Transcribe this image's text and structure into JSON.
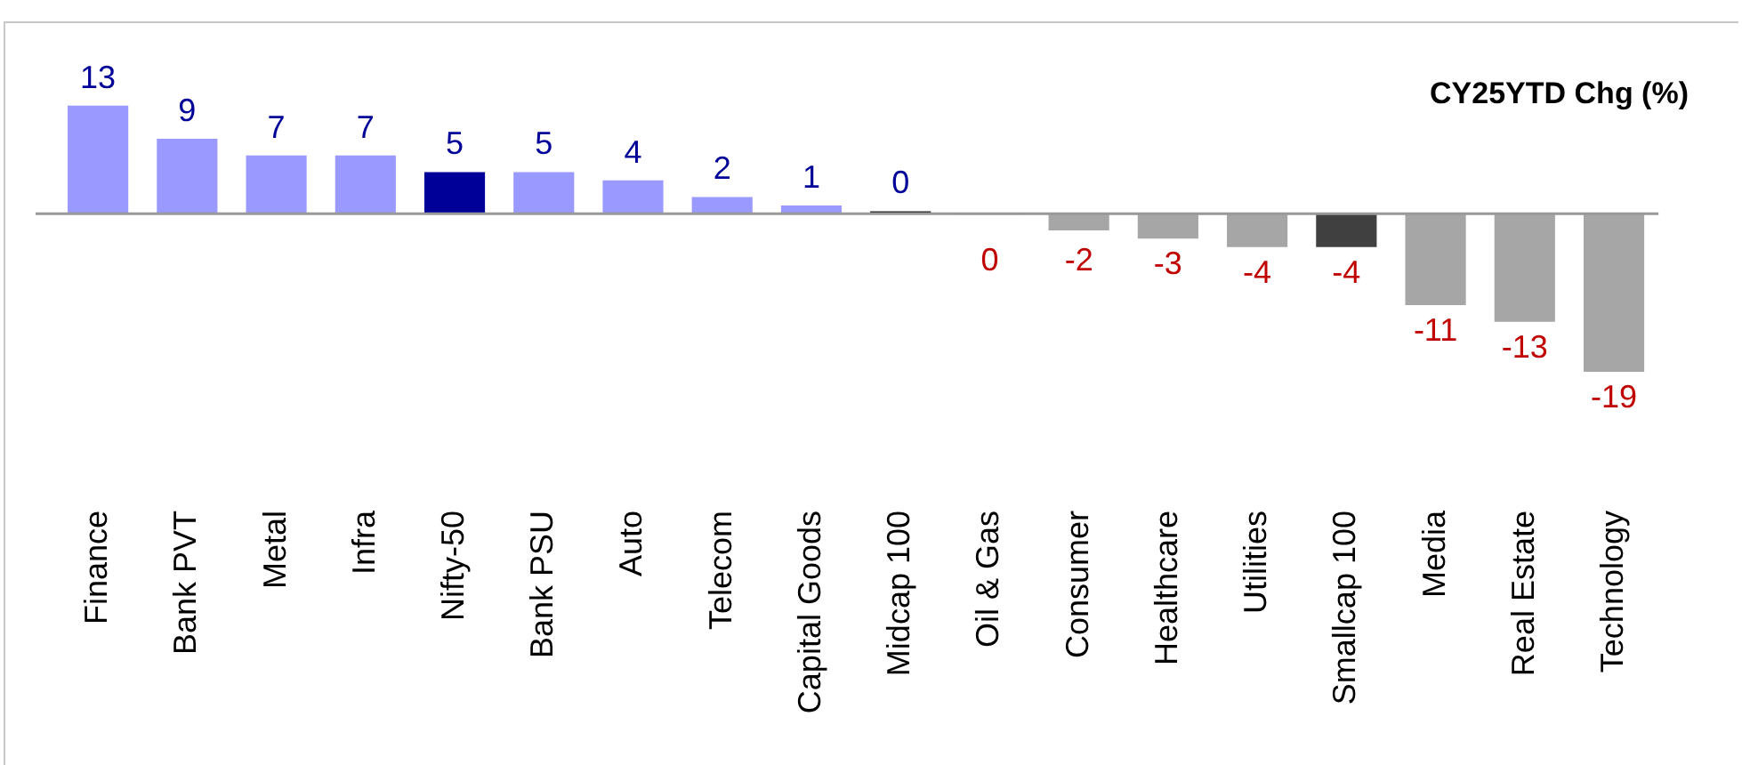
{
  "chart_data": {
    "type": "bar",
    "title": "CY25YTD Chg (%)",
    "categories": [
      "Finance",
      "Bank PVT",
      "Metal",
      "Infra",
      "Nifty-50",
      "Bank PSU",
      "Auto",
      "Telecom",
      "Capital Goods",
      "Midcap 100",
      "Oil & Gas",
      "Consumer",
      "Healthcare",
      "Utilities",
      "Smallcap 100",
      "Media",
      "Real Estate",
      "Technology"
    ],
    "values": [
      13,
      9,
      7,
      7,
      5,
      5,
      4,
      2,
      1,
      0.3,
      -0.1,
      -2,
      -3,
      -4,
      -4,
      -11,
      -13,
      -19
    ],
    "colors": [
      "#9999ff",
      "#9999ff",
      "#9999ff",
      "#9999ff",
      "#000099",
      "#9999ff",
      "#9999ff",
      "#9999ff",
      "#9999ff",
      "#262626",
      "#a6a6a6",
      "#a6a6a6",
      "#a6a6a6",
      "#a6a6a6",
      "#404040",
      "#a6a6a6",
      "#a6a6a6",
      "#a6a6a6"
    ],
    "value_labels": [
      "13",
      "9",
      "7",
      "7",
      "5",
      "5",
      "4",
      "2",
      "1",
      "0",
      "0",
      "-2",
      "-3",
      "-4",
      "-4",
      "-11",
      "-13",
      "-19"
    ],
    "relative": false,
    "legend": false,
    "grid": false
  }
}
